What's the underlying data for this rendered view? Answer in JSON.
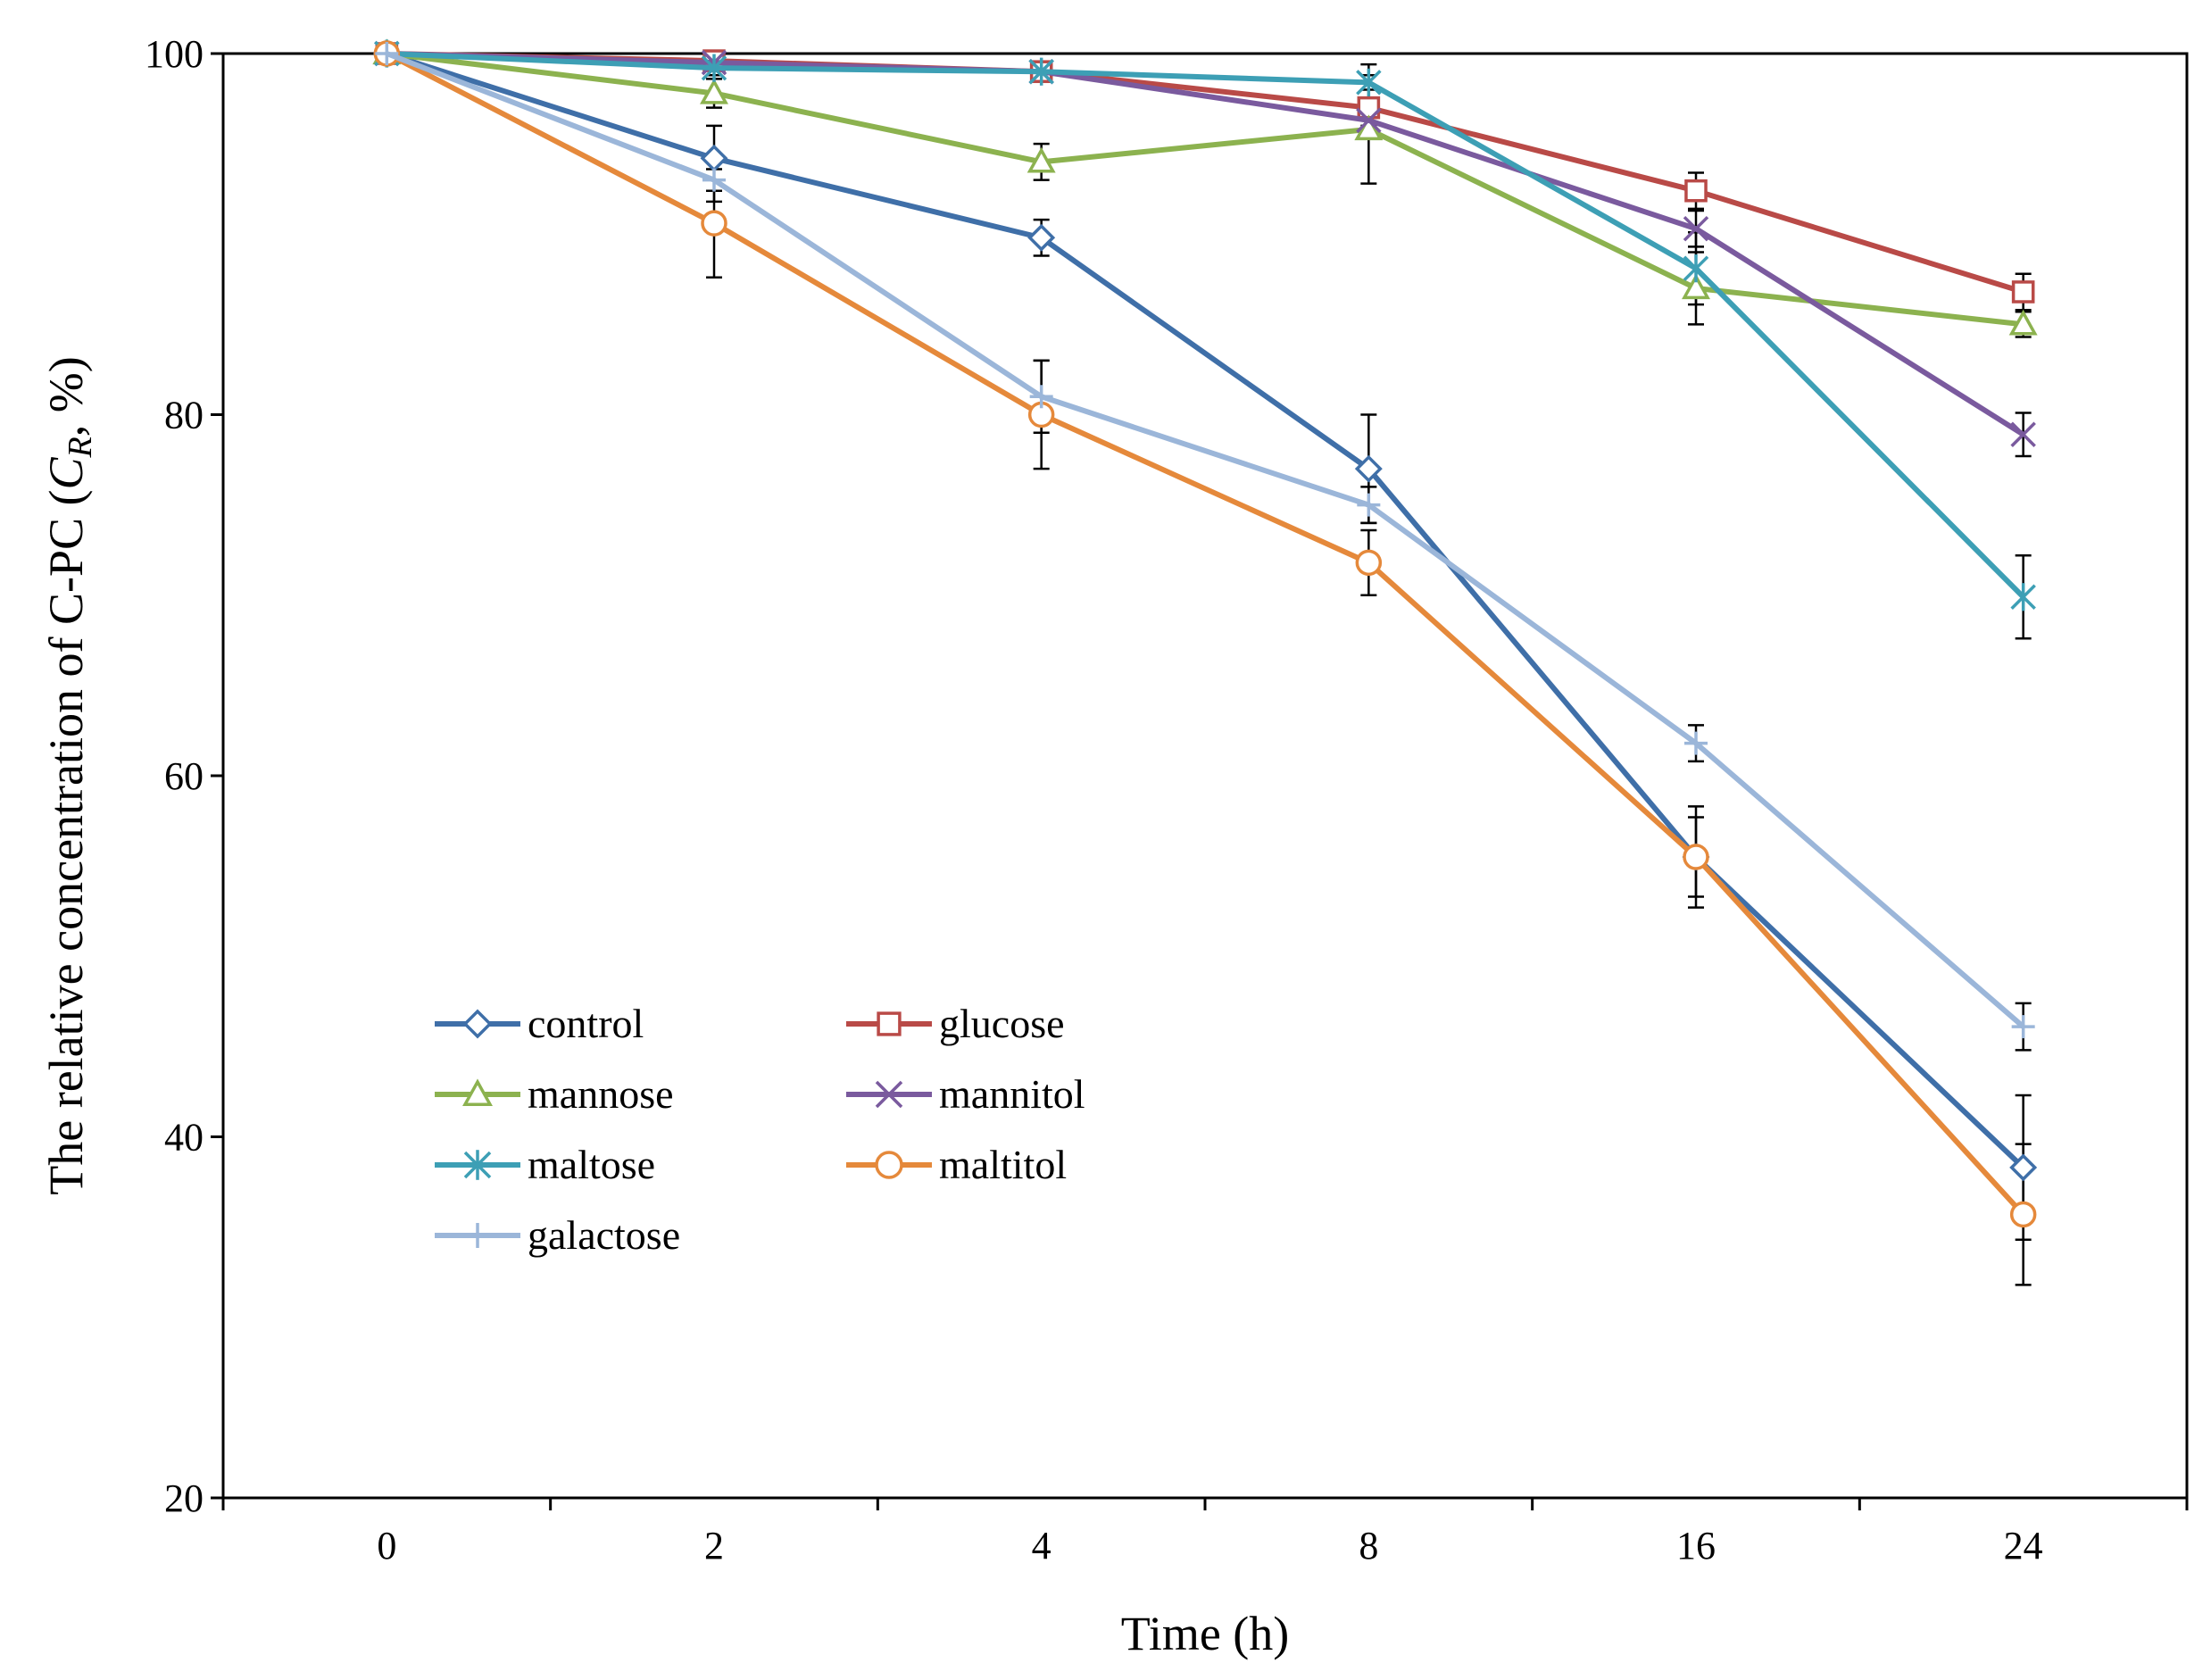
{
  "chart_data": {
    "type": "line",
    "title": "",
    "xlabel": "Time (h)",
    "ylabel": {
      "prefix": "The relative concentration of C-PC (",
      "symbol": "C",
      "subscript": "R",
      "suffix": ", %)"
    },
    "categories": [
      "0",
      "2",
      "4",
      "8",
      "16",
      "24"
    ],
    "ylim": [
      20,
      100
    ],
    "yticks": [
      20,
      40,
      60,
      80,
      100
    ],
    "grid": false,
    "legend_position": "lower-left",
    "series": [
      {
        "name": "control",
        "color": "#3f6fa8",
        "marker": "diamond",
        "values": [
          100,
          94.2,
          89.8,
          77.0,
          55.5,
          38.3
        ],
        "errors": [
          0,
          1.8,
          1.0,
          3.0,
          2.8,
          4.0
        ]
      },
      {
        "name": "glucose",
        "color": "#b94a47",
        "marker": "square",
        "values": [
          100,
          99.6,
          99.0,
          97.0,
          92.4,
          86.8
        ],
        "errors": [
          0,
          0.4,
          0.3,
          1.0,
          1.0,
          1.0
        ]
      },
      {
        "name": "mannose",
        "color": "#8cb24f",
        "marker": "triangle",
        "values": [
          100,
          97.8,
          94.0,
          95.8,
          87.0,
          85.0
        ],
        "errors": [
          0,
          0.8,
          1.0,
          3.0,
          2.0,
          0.7
        ]
      },
      {
        "name": "mannitol",
        "color": "#7a5a9e",
        "marker": "x",
        "values": [
          100,
          99.5,
          99.0,
          96.3,
          90.3,
          78.9
        ],
        "errors": [
          0,
          0.4,
          0.3,
          1.0,
          1.0,
          1.2
        ]
      },
      {
        "name": "maltose",
        "color": "#3d9fb5",
        "marker": "star",
        "values": [
          100,
          99.2,
          99.0,
          98.4,
          88.1,
          69.9
        ],
        "errors": [
          0,
          0.4,
          0.3,
          1.0,
          2.0,
          2.3
        ]
      },
      {
        "name": "maltitol",
        "color": "#e5893b",
        "marker": "circle",
        "values": [
          100,
          90.6,
          80.0,
          71.8,
          55.5,
          35.7
        ],
        "errors": [
          0,
          3.0,
          3.0,
          1.8,
          2.2,
          3.9
        ]
      },
      {
        "name": "galactose",
        "color": "#9bb6d9",
        "marker": "plus",
        "values": [
          100,
          93.0,
          81.0,
          75.0,
          61.8,
          46.1
        ],
        "errors": [
          0,
          1.2,
          2.0,
          1.0,
          1.0,
          1.3
        ]
      }
    ]
  }
}
